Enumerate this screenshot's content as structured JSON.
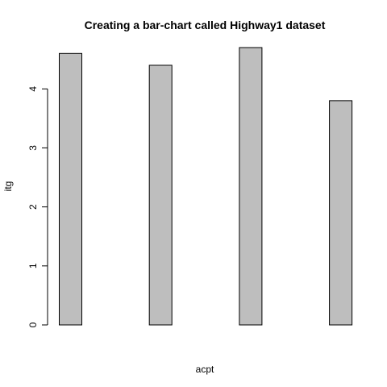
{
  "chart_data": {
    "type": "bar",
    "title": "Creating a bar-chart called Highway1 dataset",
    "xlabel": "acpt",
    "ylabel": "itg",
    "categories": [
      "",
      "",
      "",
      ""
    ],
    "values": [
      4.6,
      4.4,
      4.7,
      3.8
    ],
    "ylim": [
      0,
      4.7
    ],
    "yticks": [
      0,
      1,
      2,
      3,
      4
    ],
    "grid": false,
    "colors": {
      "bar_fill": "#bebebe",
      "bar_stroke": "#000000",
      "axis": "#000000",
      "background": "#ffffff"
    }
  }
}
